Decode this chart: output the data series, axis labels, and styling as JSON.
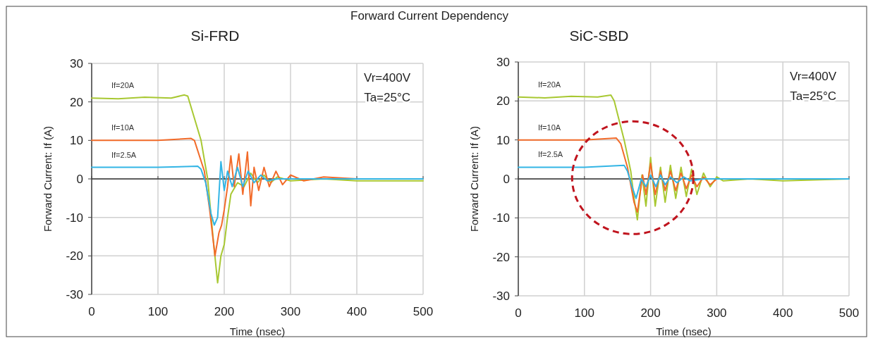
{
  "chart_data": [
    {
      "type": "line",
      "title": "Si-FRD",
      "xlabel": "Time (nsec)",
      "ylabel": "Forward Current: If (A)",
      "annotations": [
        "Forward Current Dependency",
        "Vr=400V",
        "Ta=25°C"
      ],
      "xlim": [
        0,
        500
      ],
      "xticks": [
        0,
        100,
        200,
        300,
        400,
        500
      ],
      "ylim": [
        -30,
        30
      ],
      "yticks": [
        -30,
        -20,
        -10,
        0,
        10,
        20,
        30
      ],
      "grid": true,
      "line_style": "solid",
      "series": [
        {
          "name": "If=20A",
          "color": "#a8c832",
          "x": [
            0,
            40,
            80,
            120,
            140,
            145,
            165,
            175,
            183,
            190,
            195,
            200,
            205,
            210,
            220,
            230,
            240,
            250,
            260,
            270,
            280,
            300,
            350,
            400,
            500
          ],
          "values": [
            21,
            20.8,
            21.2,
            21,
            21.8,
            21.5,
            10,
            0,
            -15,
            -27,
            -20,
            -17,
            -10,
            -4,
            -1,
            -2,
            1.5,
            -1,
            1,
            -1,
            0.5,
            -0.5,
            0,
            -0.5,
            -0.5
          ]
        },
        {
          "name": "If=10A",
          "color": "#f26b2a",
          "x": [
            0,
            50,
            100,
            150,
            155,
            170,
            178,
            186,
            192,
            196,
            200,
            205,
            210,
            215,
            222,
            228,
            235,
            240,
            245,
            252,
            260,
            268,
            278,
            288,
            300,
            320,
            350,
            400,
            500
          ],
          "values": [
            10,
            10,
            10,
            10.5,
            10,
            2,
            -8,
            -20,
            -14,
            -12,
            -8,
            -2,
            6,
            -2,
            6.5,
            -4,
            7,
            -7,
            3,
            -3,
            3,
            -2,
            2,
            -1.5,
            1,
            -0.5,
            0.5,
            0,
            0
          ]
        },
        {
          "name": "If=2.5A",
          "color": "#33b5e5",
          "x": [
            0,
            50,
            100,
            160,
            165,
            172,
            180,
            185,
            190,
            195,
            200,
            205,
            212,
            220,
            228,
            236,
            245,
            255,
            265,
            280,
            500
          ],
          "values": [
            3,
            3,
            3,
            3.3,
            2.5,
            -1,
            -9,
            -12,
            -10,
            4.5,
            -3,
            2,
            -2,
            3,
            -2,
            2,
            -1,
            1,
            -0.5,
            0,
            0
          ]
        }
      ]
    },
    {
      "type": "line",
      "title": "SiC-SBD",
      "xlabel": "Time (nsec)",
      "ylabel": "Forward Current: If (A)",
      "annotations": [
        "Vr=400V",
        "Ta=25°C"
      ],
      "xlim": [
        0,
        500
      ],
      "xticks": [
        0,
        100,
        200,
        300,
        400,
        500
      ],
      "ylim": [
        -30,
        30
      ],
      "yticks": [
        -30,
        -20,
        -10,
        0,
        10,
        20,
        30
      ],
      "grid": true,
      "line_style": "solid",
      "series": [
        {
          "name": "If=20A",
          "color": "#a8c832",
          "x": [
            0,
            40,
            80,
            120,
            140,
            145,
            160,
            170,
            175,
            180,
            187,
            193,
            200,
            207,
            215,
            222,
            230,
            238,
            246,
            254,
            262,
            270,
            280,
            290,
            300,
            310,
            350,
            400,
            500
          ],
          "values": [
            21,
            20.8,
            21.2,
            21,
            21.5,
            20,
            10,
            2,
            -5,
            -10.5,
            1,
            -7,
            5.5,
            -7,
            3,
            -6,
            3.5,
            -5,
            3,
            -4.5,
            2.5,
            -4,
            1.5,
            -2,
            0.5,
            -0.5,
            0,
            -0.5,
            0
          ]
        },
        {
          "name": "If=10A",
          "color": "#f26b2a",
          "x": [
            0,
            50,
            100,
            148,
            155,
            165,
            175,
            180,
            188,
            193,
            200,
            207,
            215,
            222,
            230,
            238,
            246,
            254,
            262,
            270,
            280,
            290,
            300,
            500
          ],
          "values": [
            10,
            10,
            10,
            10.5,
            9,
            3,
            -6,
            -8.5,
            1,
            -4,
            4,
            -4,
            2,
            -3,
            2,
            -3,
            1.5,
            -2.5,
            1,
            -2,
            0.5,
            -1.5,
            0,
            0
          ]
        },
        {
          "name": "If=2.5A",
          "color": "#33b5e5",
          "x": [
            0,
            50,
            100,
            160,
            165,
            172,
            178,
            186,
            193,
            200,
            208,
            215,
            222,
            230,
            240,
            250,
            260,
            280,
            500
          ],
          "values": [
            3,
            3,
            3,
            3.5,
            2,
            -2,
            -5,
            0,
            -2,
            1,
            -2,
            1,
            -1.5,
            0.5,
            -1,
            0.5,
            -0.5,
            0,
            0
          ]
        }
      ]
    }
  ]
}
